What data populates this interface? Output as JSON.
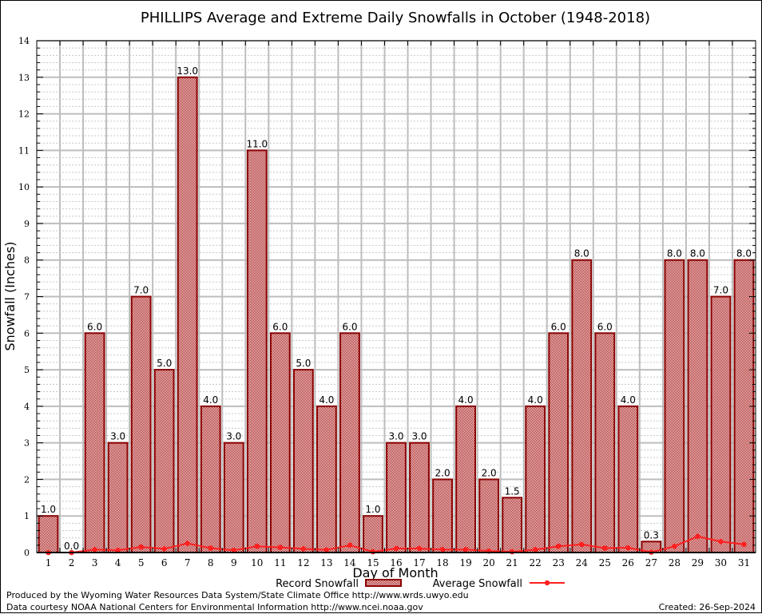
{
  "chart_data": {
    "type": "bar",
    "title": "PHILLIPS Average and Extreme Daily Snowfalls in October (1948-2018)",
    "xlabel": "Day of Month",
    "ylabel": "Snowfall (Inches)",
    "ylim": [
      0,
      14
    ],
    "yticks": [
      0,
      1,
      2,
      3,
      4,
      5,
      6,
      7,
      8,
      9,
      10,
      11,
      12,
      13,
      14
    ],
    "grid": true,
    "categories": [
      "1",
      "2",
      "3",
      "4",
      "5",
      "6",
      "7",
      "8",
      "9",
      "10",
      "11",
      "12",
      "13",
      "14",
      "15",
      "16",
      "17",
      "18",
      "19",
      "20",
      "21",
      "22",
      "23",
      "24",
      "25",
      "26",
      "27",
      "28",
      "29",
      "30",
      "31"
    ],
    "series": [
      {
        "name": "Record Snowfall",
        "type": "bar",
        "color": "#8b0000",
        "values": [
          1.0,
          0.0,
          6.0,
          3.0,
          7.0,
          5.0,
          13.0,
          4.0,
          3.0,
          11.0,
          6.0,
          5.0,
          4.0,
          6.0,
          1.0,
          3.0,
          3.0,
          2.0,
          4.0,
          2.0,
          1.5,
          4.0,
          6.0,
          8.0,
          6.0,
          4.0,
          0.3,
          8.0,
          8.0,
          7.0,
          8.0
        ],
        "labels": [
          "1.0",
          "0.0",
          "6.0",
          "3.0",
          "7.0",
          "5.0",
          "13.0",
          "4.0",
          "3.0",
          "11.0",
          "6.0",
          "5.0",
          "4.0",
          "6.0",
          "1.0",
          "3.0",
          "3.0",
          "2.0",
          "4.0",
          "2.0",
          "1.5",
          "4.0",
          "6.0",
          "8.0",
          "6.0",
          "4.0",
          "0.3",
          "8.0",
          "8.0",
          "7.0",
          "8.0"
        ]
      },
      {
        "name": "Average Snowfall",
        "type": "line",
        "color": "#ff2020",
        "values": [
          0.0,
          0.0,
          0.08,
          0.06,
          0.15,
          0.1,
          0.25,
          0.12,
          0.06,
          0.17,
          0.14,
          0.1,
          0.07,
          0.2,
          0.02,
          0.11,
          0.11,
          0.08,
          0.08,
          0.04,
          0.02,
          0.08,
          0.17,
          0.22,
          0.12,
          0.13,
          0.01,
          0.17,
          0.44,
          0.3,
          0.22
        ]
      }
    ],
    "legend": {
      "placement": "bottom-center",
      "entries": [
        "Record Snowfall",
        "Average Snowfall"
      ]
    }
  },
  "footer": {
    "line1": "Produced by the Wyoming Water Resources Data System/State Climate Office http://www.wrds.uwyo.edu",
    "line2": "Data courtesy NOAA National Centers for Environmental Information http://www.ncei.noaa.gov",
    "created": "Created: 26-Sep-2024"
  }
}
